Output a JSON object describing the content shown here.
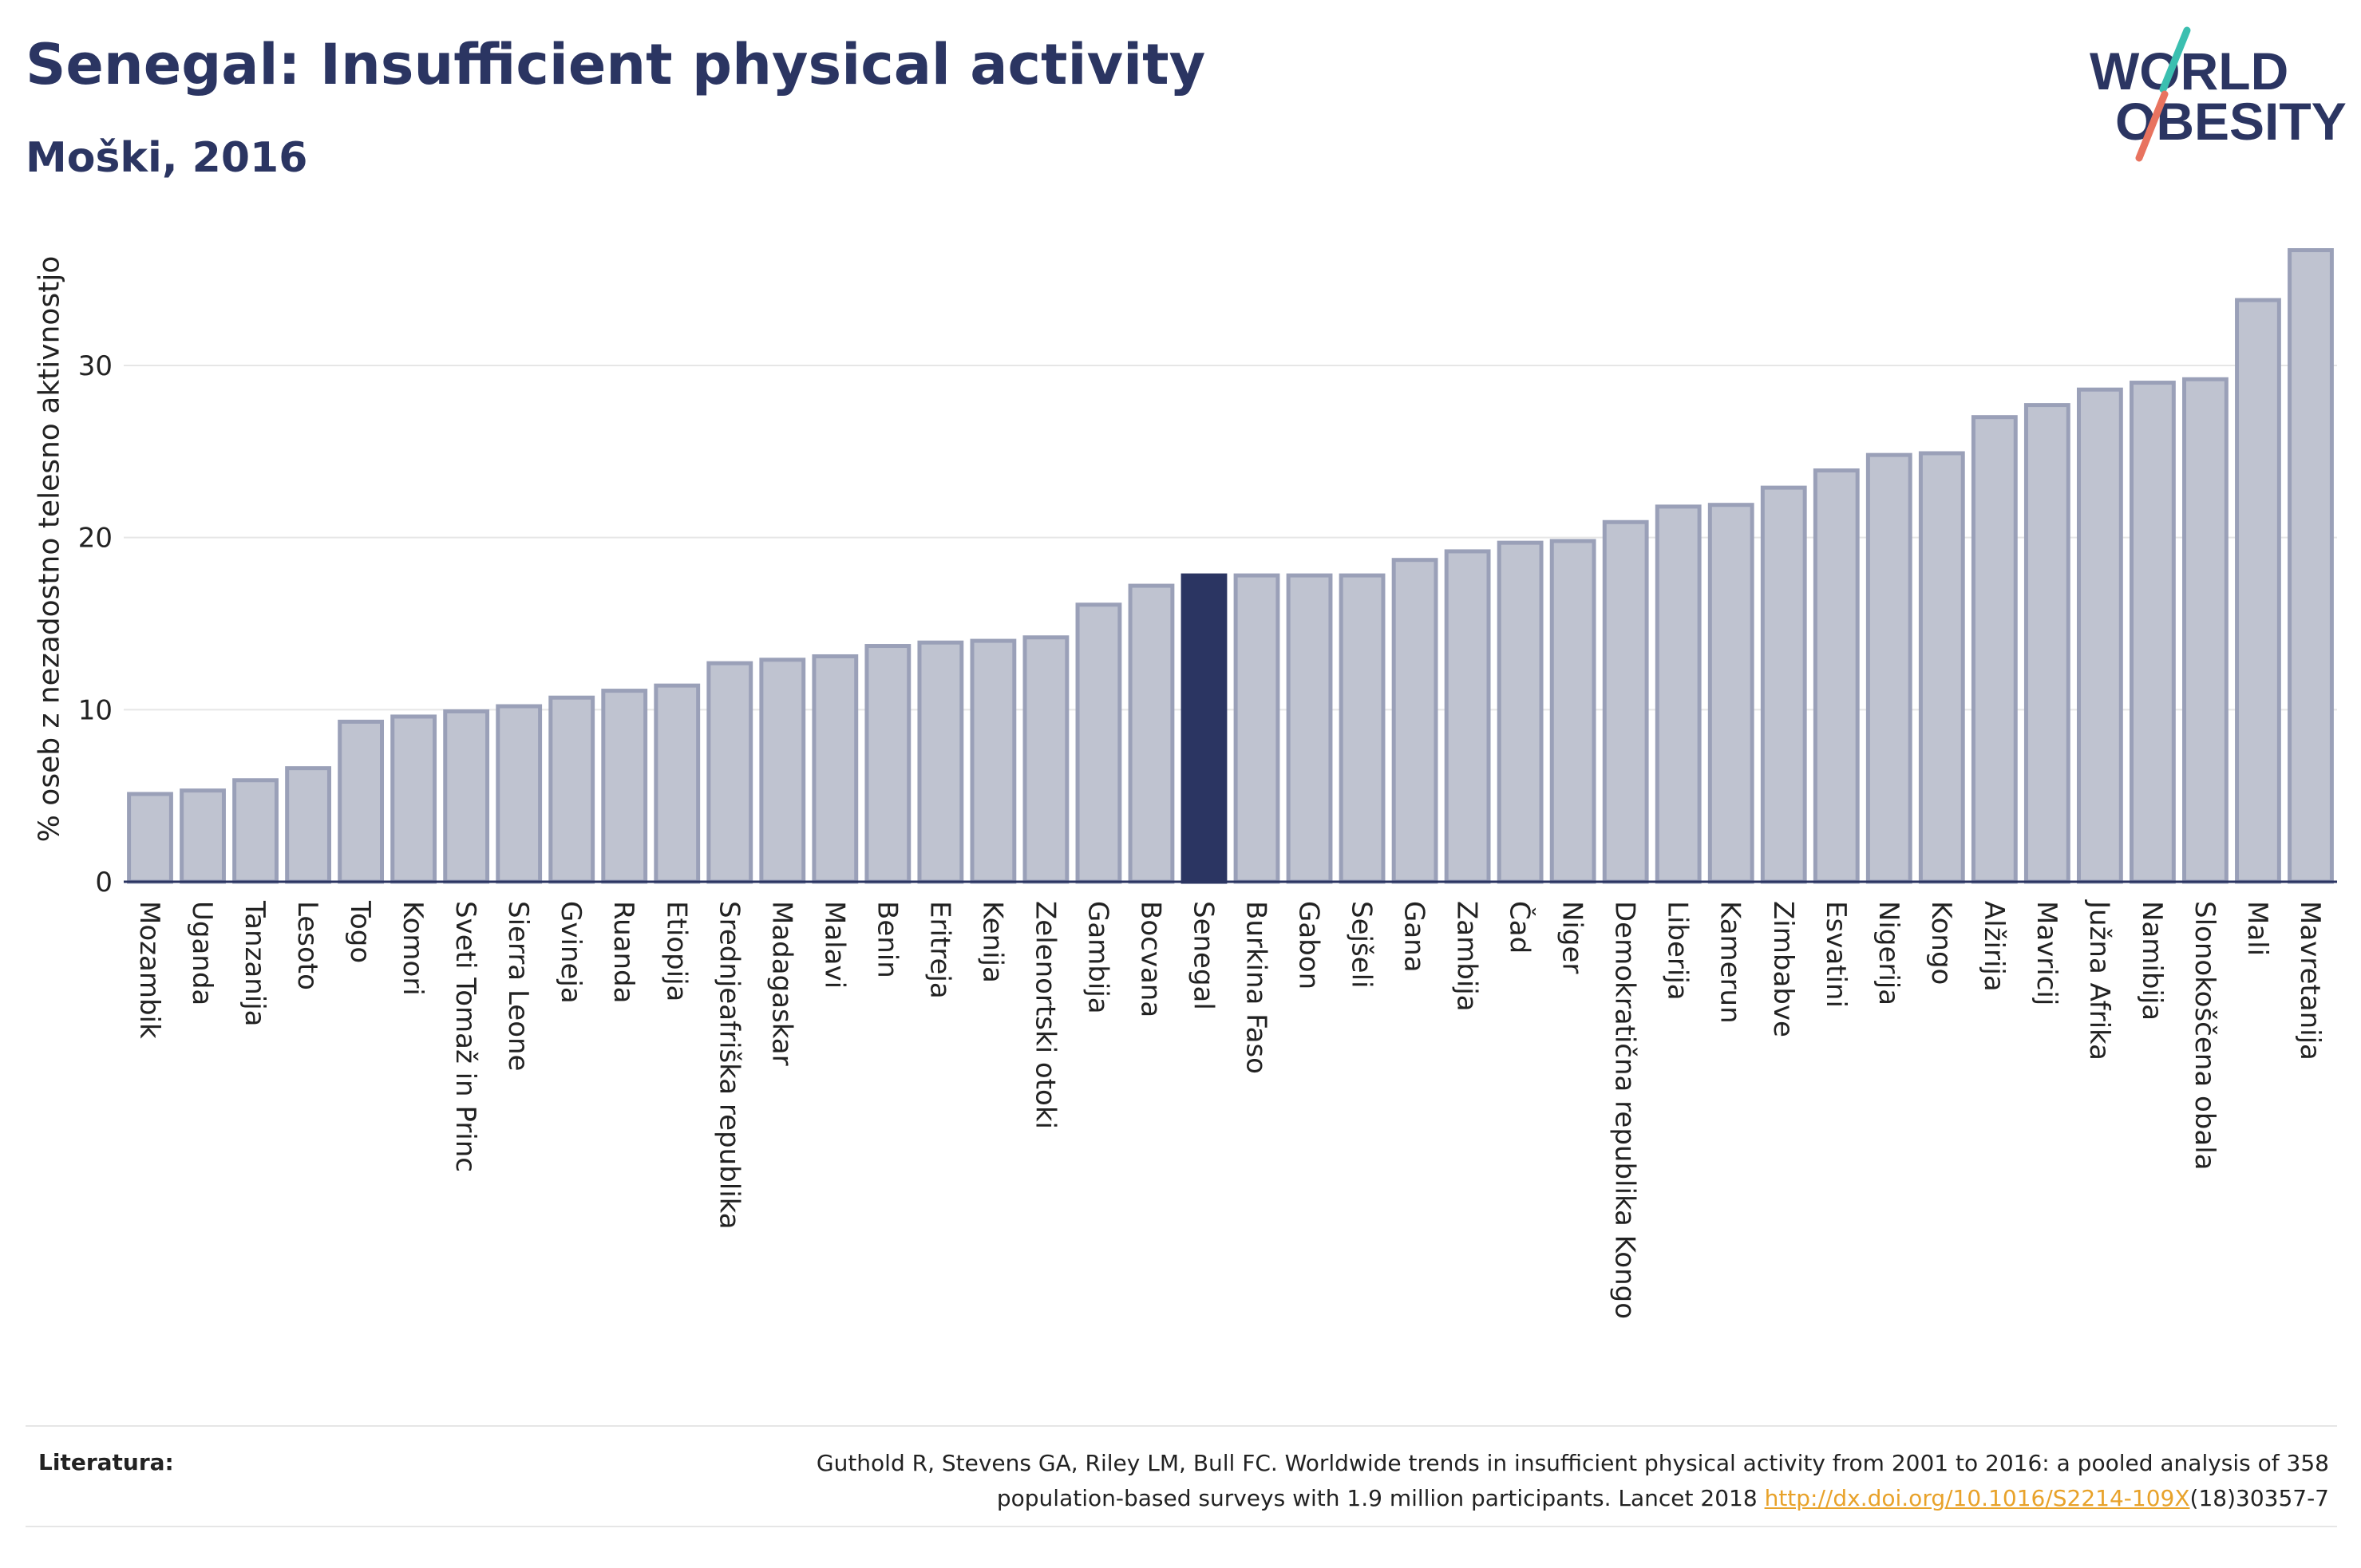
{
  "title": "Senegal: Insufficient physical activity",
  "subtitle": "Moški, 2016",
  "logo": {
    "line1": "WORLD",
    "line2": "OBESITY"
  },
  "colors": {
    "navy": "#2b3562",
    "bar_fill": "#bfc3d0",
    "bar_stroke": "#9aa0b8",
    "highlight": "#2b3562",
    "teal": "#3bbfb0",
    "coral": "#e8735f",
    "link": "#e8a22a"
  },
  "chart_data": {
    "type": "bar",
    "title": "Senegal: Insufficient physical activity",
    "subtitle": "Moški, 2016",
    "xlabel": "",
    "ylabel": "% oseb z nezadostno telesno aktivnostjo",
    "ylim": [
      0,
      37.5
    ],
    "yticks": [
      0,
      10,
      20,
      30
    ],
    "grid": true,
    "highlight": "Senegal",
    "categories": [
      "Mozambik",
      "Uganda",
      "Tanzanija",
      "Lesoto",
      "Togo",
      "Komori",
      "Sveti Tomaž in Princ",
      "Sierra Leone",
      "Gvineja",
      "Ruanda",
      "Etiopija",
      "Srednjeafriška republika",
      "Madagaskar",
      "Malavi",
      "Benin",
      "Eritreja",
      "Kenija",
      "Zelenortski otoki",
      "Gambija",
      "Bocvana",
      "Senegal",
      "Burkina Faso",
      "Gabon",
      "Sejšeli",
      "Gana",
      "Zambija",
      "Čad",
      "Niger",
      "Demokratična republika Kongo",
      "Liberija",
      "Kamerun",
      "Zimbabve",
      "Esvatini",
      "Nigerija",
      "Kongo",
      "Alžirija",
      "Mavricij",
      "Južna Afrika",
      "Namibija",
      "Slonokoščena obala",
      "Mali",
      "Mavretanija"
    ],
    "values": [
      5.1,
      5.3,
      5.9,
      6.6,
      9.3,
      9.6,
      9.9,
      10.2,
      10.7,
      11.1,
      11.4,
      12.7,
      12.9,
      13.1,
      13.7,
      13.9,
      14.0,
      14.2,
      16.1,
      17.2,
      17.8,
      17.8,
      17.8,
      17.8,
      18.7,
      19.2,
      19.7,
      19.8,
      20.9,
      21.8,
      21.9,
      22.9,
      23.9,
      24.8,
      24.9,
      27.0,
      27.7,
      28.6,
      29.0,
      29.2,
      33.8,
      36.7
    ]
  },
  "footer": {
    "label": "Literatura:",
    "text_line1": "Guthold R, Stevens GA, Riley LM, Bull FC. Worldwide trends in insufficient physical activity from 2001 to 2016: a pooled analysis of 358",
    "text_line2_pre": "population-based surveys with 1.9 million participants. Lancet 2018 ",
    "link": "http://dx.doi.org/10.1016/S2214-109X",
    "text_line2_post": "(18)30357-7"
  }
}
